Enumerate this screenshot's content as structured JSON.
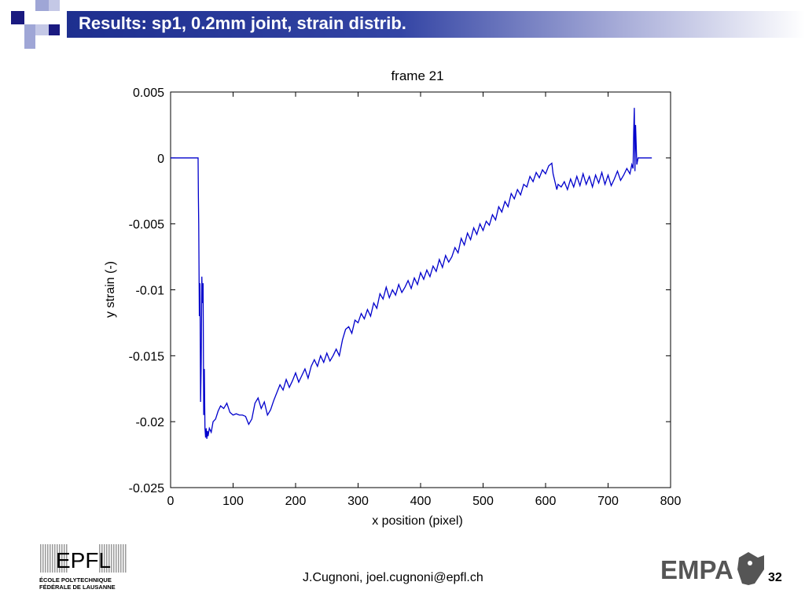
{
  "slide": {
    "title": "Results: sp1, 0.2mm joint, strain distrib.",
    "footer": "J.Cugnoni, joel.cugnoni@epfl.ch",
    "page_number": "32",
    "colors": {
      "title_bar": "#1e2f8f",
      "square_dark": "#1a1a80",
      "square_light": "#9fa6d6"
    }
  },
  "logos": {
    "epfl": {
      "mark": "EPFL",
      "line1": "ÉCOLE  POLYTECHNIQUE",
      "line2": "FÉDÉRALE DE LAUSANNE"
    },
    "empa": {
      "text": "EMPA"
    }
  },
  "chart_data": {
    "type": "line",
    "title": "frame 21",
    "xlabel": "x position (pixel)",
    "ylabel": "y strain (-)",
    "xlim": [
      0,
      800
    ],
    "ylim": [
      -0.025,
      0.005
    ],
    "xticks": [
      0,
      100,
      200,
      300,
      400,
      500,
      600,
      700,
      800
    ],
    "xtick_labels": [
      "0",
      "100",
      "200",
      "300",
      "400",
      "500",
      "600",
      "700",
      "800"
    ],
    "yticks": [
      0.005,
      0,
      -0.005,
      -0.01,
      -0.015,
      -0.02,
      -0.025
    ],
    "ytick_labels": [
      "0.005",
      "0",
      "-0.005",
      "-0.01",
      "-0.015",
      "-0.02",
      "-0.025"
    ],
    "grid": false,
    "line_color": "#0000cc",
    "series": [
      {
        "x": [
          0,
          44,
          44.5,
          45,
          46,
          47,
          48,
          49,
          50,
          51,
          52,
          53,
          54,
          55,
          56,
          57,
          58,
          59,
          60,
          62,
          65,
          68,
          72,
          76,
          80,
          85,
          90,
          95,
          100,
          105,
          110,
          115,
          120,
          125,
          130,
          135,
          140,
          145,
          150,
          155,
          160,
          165,
          170,
          175,
          180,
          185,
          190,
          195,
          200,
          205,
          210,
          215,
          220,
          225,
          230,
          235,
          240,
          245,
          250,
          255,
          260,
          265,
          270,
          275,
          280,
          285,
          290,
          295,
          300,
          305,
          310,
          315,
          320,
          325,
          330,
          335,
          340,
          345,
          350,
          355,
          360,
          365,
          370,
          375,
          380,
          385,
          390,
          395,
          400,
          405,
          410,
          415,
          420,
          425,
          430,
          435,
          440,
          445,
          450,
          455,
          460,
          465,
          470,
          475,
          480,
          485,
          490,
          495,
          500,
          505,
          510,
          515,
          520,
          525,
          530,
          535,
          540,
          545,
          550,
          555,
          560,
          565,
          570,
          575,
          580,
          585,
          590,
          595,
          600,
          605,
          610,
          612,
          615,
          618,
          620,
          625,
          630,
          635,
          640,
          645,
          650,
          655,
          660,
          665,
          670,
          675,
          680,
          685,
          690,
          695,
          700,
          705,
          710,
          715,
          720,
          725,
          730,
          735,
          738,
          740,
          741,
          742,
          743,
          744,
          745,
          746,
          748,
          750,
          760,
          770
        ],
        "y": [
          0,
          0,
          -0.003,
          -0.005,
          -0.012,
          -0.0095,
          -0.0185,
          -0.0155,
          -0.009,
          -0.011,
          -0.0095,
          -0.0195,
          -0.016,
          -0.0205,
          -0.0212,
          -0.0205,
          -0.0213,
          -0.0207,
          -0.0211,
          -0.0205,
          -0.0208,
          -0.02,
          -0.0198,
          -0.0192,
          -0.0188,
          -0.019,
          -0.0186,
          -0.0193,
          -0.0195,
          -0.0194,
          -0.0195,
          -0.0195,
          -0.0196,
          -0.0202,
          -0.0198,
          -0.0186,
          -0.0182,
          -0.019,
          -0.0185,
          -0.0195,
          -0.0191,
          -0.0184,
          -0.0178,
          -0.0172,
          -0.0176,
          -0.0168,
          -0.0174,
          -0.0169,
          -0.0163,
          -0.017,
          -0.0165,
          -0.016,
          -0.0167,
          -0.0158,
          -0.0153,
          -0.0158,
          -0.015,
          -0.0155,
          -0.0148,
          -0.0154,
          -0.015,
          -0.0145,
          -0.015,
          -0.0138,
          -0.013,
          -0.0128,
          -0.0133,
          -0.0123,
          -0.0125,
          -0.0118,
          -0.0122,
          -0.0115,
          -0.012,
          -0.011,
          -0.0114,
          -0.0103,
          -0.0107,
          -0.0098,
          -0.0106,
          -0.01,
          -0.0104,
          -0.0096,
          -0.0102,
          -0.0098,
          -0.0093,
          -0.0099,
          -0.0091,
          -0.0096,
          -0.0087,
          -0.0092,
          -0.0085,
          -0.009,
          -0.0082,
          -0.0086,
          -0.0077,
          -0.0083,
          -0.0074,
          -0.0079,
          -0.0075,
          -0.0068,
          -0.0072,
          -0.0061,
          -0.0066,
          -0.0057,
          -0.0062,
          -0.0053,
          -0.0058,
          -0.005,
          -0.0055,
          -0.0048,
          -0.0051,
          -0.0043,
          -0.0047,
          -0.0037,
          -0.0041,
          -0.0033,
          -0.0037,
          -0.0027,
          -0.0031,
          -0.0024,
          -0.0028,
          -0.002,
          -0.0022,
          -0.0014,
          -0.0018,
          -0.0011,
          -0.0015,
          -0.0009,
          -0.0012,
          -0.0006,
          -0.0004,
          -0.0012,
          -0.0018,
          -0.0024,
          -0.002,
          -0.0022,
          -0.0018,
          -0.0024,
          -0.0016,
          -0.0022,
          -0.0014,
          -0.0021,
          -0.0012,
          -0.002,
          -0.0014,
          -0.0022,
          -0.0013,
          -0.0019,
          -0.0011,
          -0.002,
          -0.0013,
          -0.0021,
          -0.0016,
          -0.001,
          -0.0017,
          -0.0013,
          -0.0008,
          -0.0012,
          -0.0005,
          -0.0008,
          0.002,
          0.0038,
          -0.001,
          0.0025,
          0.001,
          -0.0005,
          0,
          0,
          0,
          0
        ]
      }
    ]
  }
}
